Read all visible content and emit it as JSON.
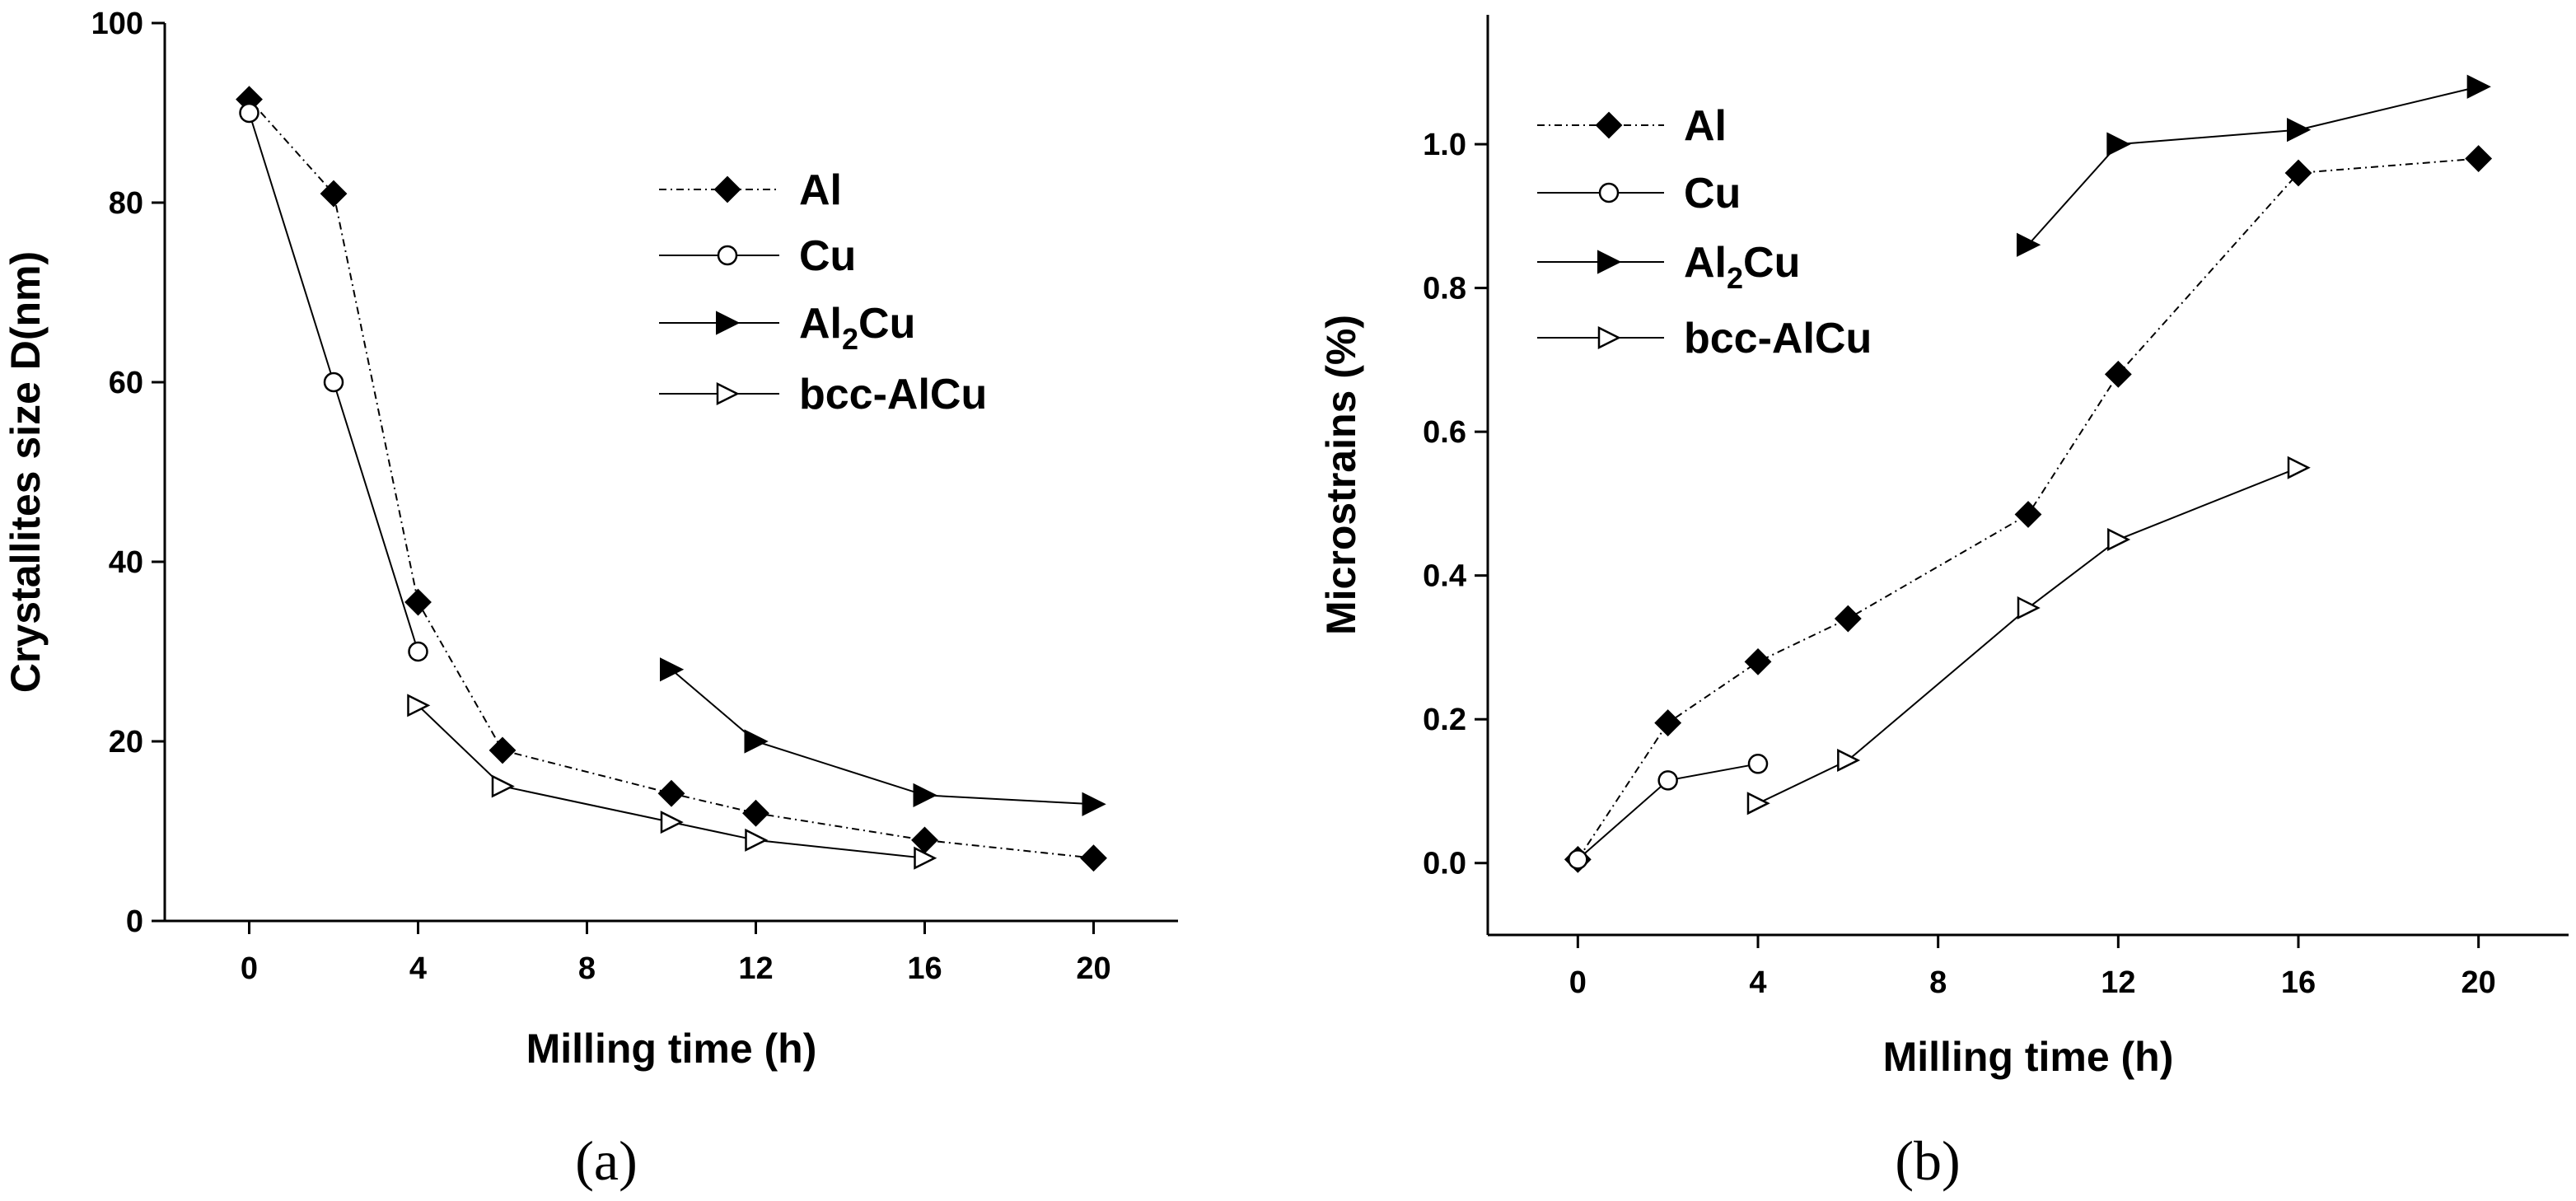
{
  "chart_data": [
    {
      "type": "line",
      "panel_label": "(a)",
      "xlabel": "Milling time (h)",
      "ylabel": "Crystallites size D(nm)",
      "xlim": [
        -2,
        22
      ],
      "ylim": [
        0,
        100
      ],
      "xticks": [
        0,
        4,
        8,
        12,
        16,
        20
      ],
      "yticks": [
        0,
        20,
        40,
        60,
        80,
        100
      ],
      "legend_position": "top-right",
      "series": [
        {
          "name": "Al",
          "marker": "filled-diamond",
          "line": "dash-dot",
          "x": [
            0,
            2,
            4,
            6,
            10,
            12,
            16,
            20
          ],
          "y": [
            91.5,
            81,
            35.5,
            19,
            14.2,
            12,
            9,
            7
          ]
        },
        {
          "name": "Cu",
          "marker": "open-circle",
          "line": "solid",
          "x": [
            0,
            2,
            4
          ],
          "y": [
            90,
            60,
            30
          ]
        },
        {
          "name": "Al2Cu",
          "name_main": "Al",
          "name_sub": "2",
          "name_rest": "Cu",
          "marker": "filled-right-triangle",
          "line": "solid",
          "x": [
            10,
            12,
            16,
            20
          ],
          "y": [
            28,
            20,
            14,
            13
          ]
        },
        {
          "name": "bcc-AlCu",
          "marker": "open-right-triangle",
          "line": "solid",
          "x": [
            4,
            6,
            10,
            12,
            16
          ],
          "y": [
            24,
            15,
            11,
            9,
            7
          ]
        }
      ]
    },
    {
      "type": "line",
      "panel_label": "(b)",
      "xlabel": "Milling time (h)",
      "ylabel": "Microstrains (%)",
      "xlim": [
        -2,
        22
      ],
      "ylim": [
        -0.1,
        1.18
      ],
      "xticks": [
        0,
        4,
        8,
        12,
        16,
        20
      ],
      "yticks": [
        0.0,
        0.2,
        0.4,
        0.6,
        0.8,
        1.0
      ],
      "ytick_labels": [
        "0.0",
        "0.2",
        "0.4",
        "0.6",
        "0.8",
        "1.0"
      ],
      "legend_position": "top-left",
      "series": [
        {
          "name": "Al",
          "marker": "filled-diamond",
          "line": "dash-dot",
          "x": [
            0,
            2,
            4,
            6,
            10,
            12,
            16,
            20
          ],
          "y": [
            0.005,
            0.195,
            0.28,
            0.34,
            0.485,
            0.68,
            0.96,
            0.98
          ]
        },
        {
          "name": "Cu",
          "marker": "open-circle",
          "line": "solid",
          "x": [
            0,
            2,
            4
          ],
          "y": [
            0.005,
            0.115,
            0.138
          ]
        },
        {
          "name": "Al2Cu",
          "name_main": "Al",
          "name_sub": "2",
          "name_rest": "Cu",
          "marker": "filled-right-triangle",
          "line": "solid",
          "x": [
            10,
            12,
            16,
            20
          ],
          "y": [
            0.86,
            1.0,
            1.02,
            1.08
          ]
        },
        {
          "name": "bcc-AlCu",
          "marker": "open-right-triangle",
          "line": "solid",
          "x": [
            4,
            6,
            10,
            12,
            16
          ],
          "y": [
            0.083,
            0.143,
            0.355,
            0.45,
            0.55
          ]
        }
      ]
    }
  ]
}
